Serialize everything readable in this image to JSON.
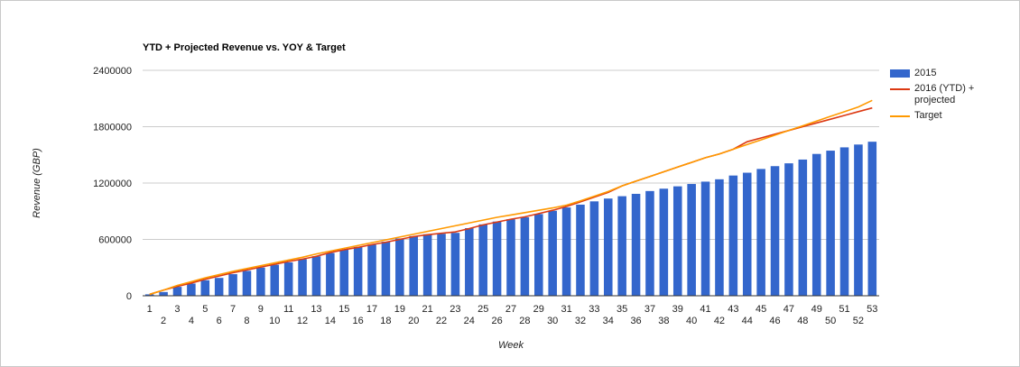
{
  "chart_data": {
    "type": "bar",
    "title": "YTD + Projected Revenue vs. YOY & Target",
    "xlabel": "Week",
    "ylabel": "Revenue (GBP)",
    "ylim": [
      0,
      2400000
    ],
    "yticks": [
      0,
      600000,
      1200000,
      1800000,
      2400000
    ],
    "ytick_labels": [
      "0",
      "600000",
      "1200000",
      "1800000",
      "2400000"
    ],
    "grid": true,
    "legend_position": "right",
    "categories": [
      "1",
      "2",
      "3",
      "4",
      "5",
      "6",
      "7",
      "8",
      "9",
      "10",
      "11",
      "12",
      "13",
      "14",
      "15",
      "16",
      "17",
      "18",
      "19",
      "20",
      "21",
      "22",
      "23",
      "24",
      "25",
      "26",
      "27",
      "28",
      "29",
      "30",
      "31",
      "32",
      "33",
      "34",
      "35",
      "36",
      "37",
      "38",
      "39",
      "40",
      "41",
      "42",
      "43",
      "44",
      "45",
      "46",
      "47",
      "48",
      "49",
      "50",
      "51",
      "52",
      "53"
    ],
    "series": [
      {
        "name": "2015",
        "type": "bar",
        "color": "#3366cc",
        "values": [
          15000,
          40000,
          95000,
          130000,
          165000,
          190000,
          230000,
          265000,
          300000,
          330000,
          355000,
          390000,
          420000,
          455000,
          490000,
          520000,
          545000,
          575000,
          610000,
          635000,
          655000,
          660000,
          670000,
          720000,
          760000,
          790000,
          815000,
          835000,
          870000,
          905000,
          940000,
          970000,
          1005000,
          1035000,
          1060000,
          1085000,
          1115000,
          1140000,
          1165000,
          1190000,
          1215000,
          1240000,
          1280000,
          1310000,
          1350000,
          1380000,
          1410000,
          1450000,
          1510000,
          1545000,
          1580000,
          1610000,
          1640000
        ]
      },
      {
        "name": "2016 (YTD) + projected",
        "type": "line",
        "color": "#dc3912",
        "values": [
          15000,
          60000,
          100000,
          135000,
          175000,
          210000,
          245000,
          275000,
          305000,
          335000,
          365000,
          390000,
          420000,
          460000,
          490000,
          515000,
          545000,
          570000,
          600000,
          630000,
          650000,
          665000,
          680000,
          715000,
          755000,
          785000,
          815000,
          840000,
          875000,
          910000,
          950000,
          1000000,
          1050000,
          1100000,
          1170000,
          1220000,
          1270000,
          1320000,
          1370000,
          1420000,
          1470000,
          1510000,
          1560000,
          1640000,
          1680000,
          1720000,
          1760000,
          1800000,
          1840000,
          1880000,
          1920000,
          1960000,
          2000000
        ]
      },
      {
        "name": "Target",
        "type": "line",
        "color": "#ff9900",
        "values": [
          15000,
          60000,
          110000,
          150000,
          190000,
          225000,
          260000,
          290000,
          320000,
          350000,
          380000,
          410000,
          445000,
          475000,
          505000,
          535000,
          565000,
          595000,
          625000,
          655000,
          685000,
          715000,
          745000,
          775000,
          805000,
          835000,
          860000,
          885000,
          910000,
          935000,
          965000,
          1010000,
          1060000,
          1110000,
          1170000,
          1220000,
          1270000,
          1320000,
          1370000,
          1420000,
          1470000,
          1510000,
          1560000,
          1610000,
          1660000,
          1710000,
          1760000,
          1810000,
          1860000,
          1910000,
          1960000,
          2010000,
          2080000
        ]
      }
    ]
  }
}
